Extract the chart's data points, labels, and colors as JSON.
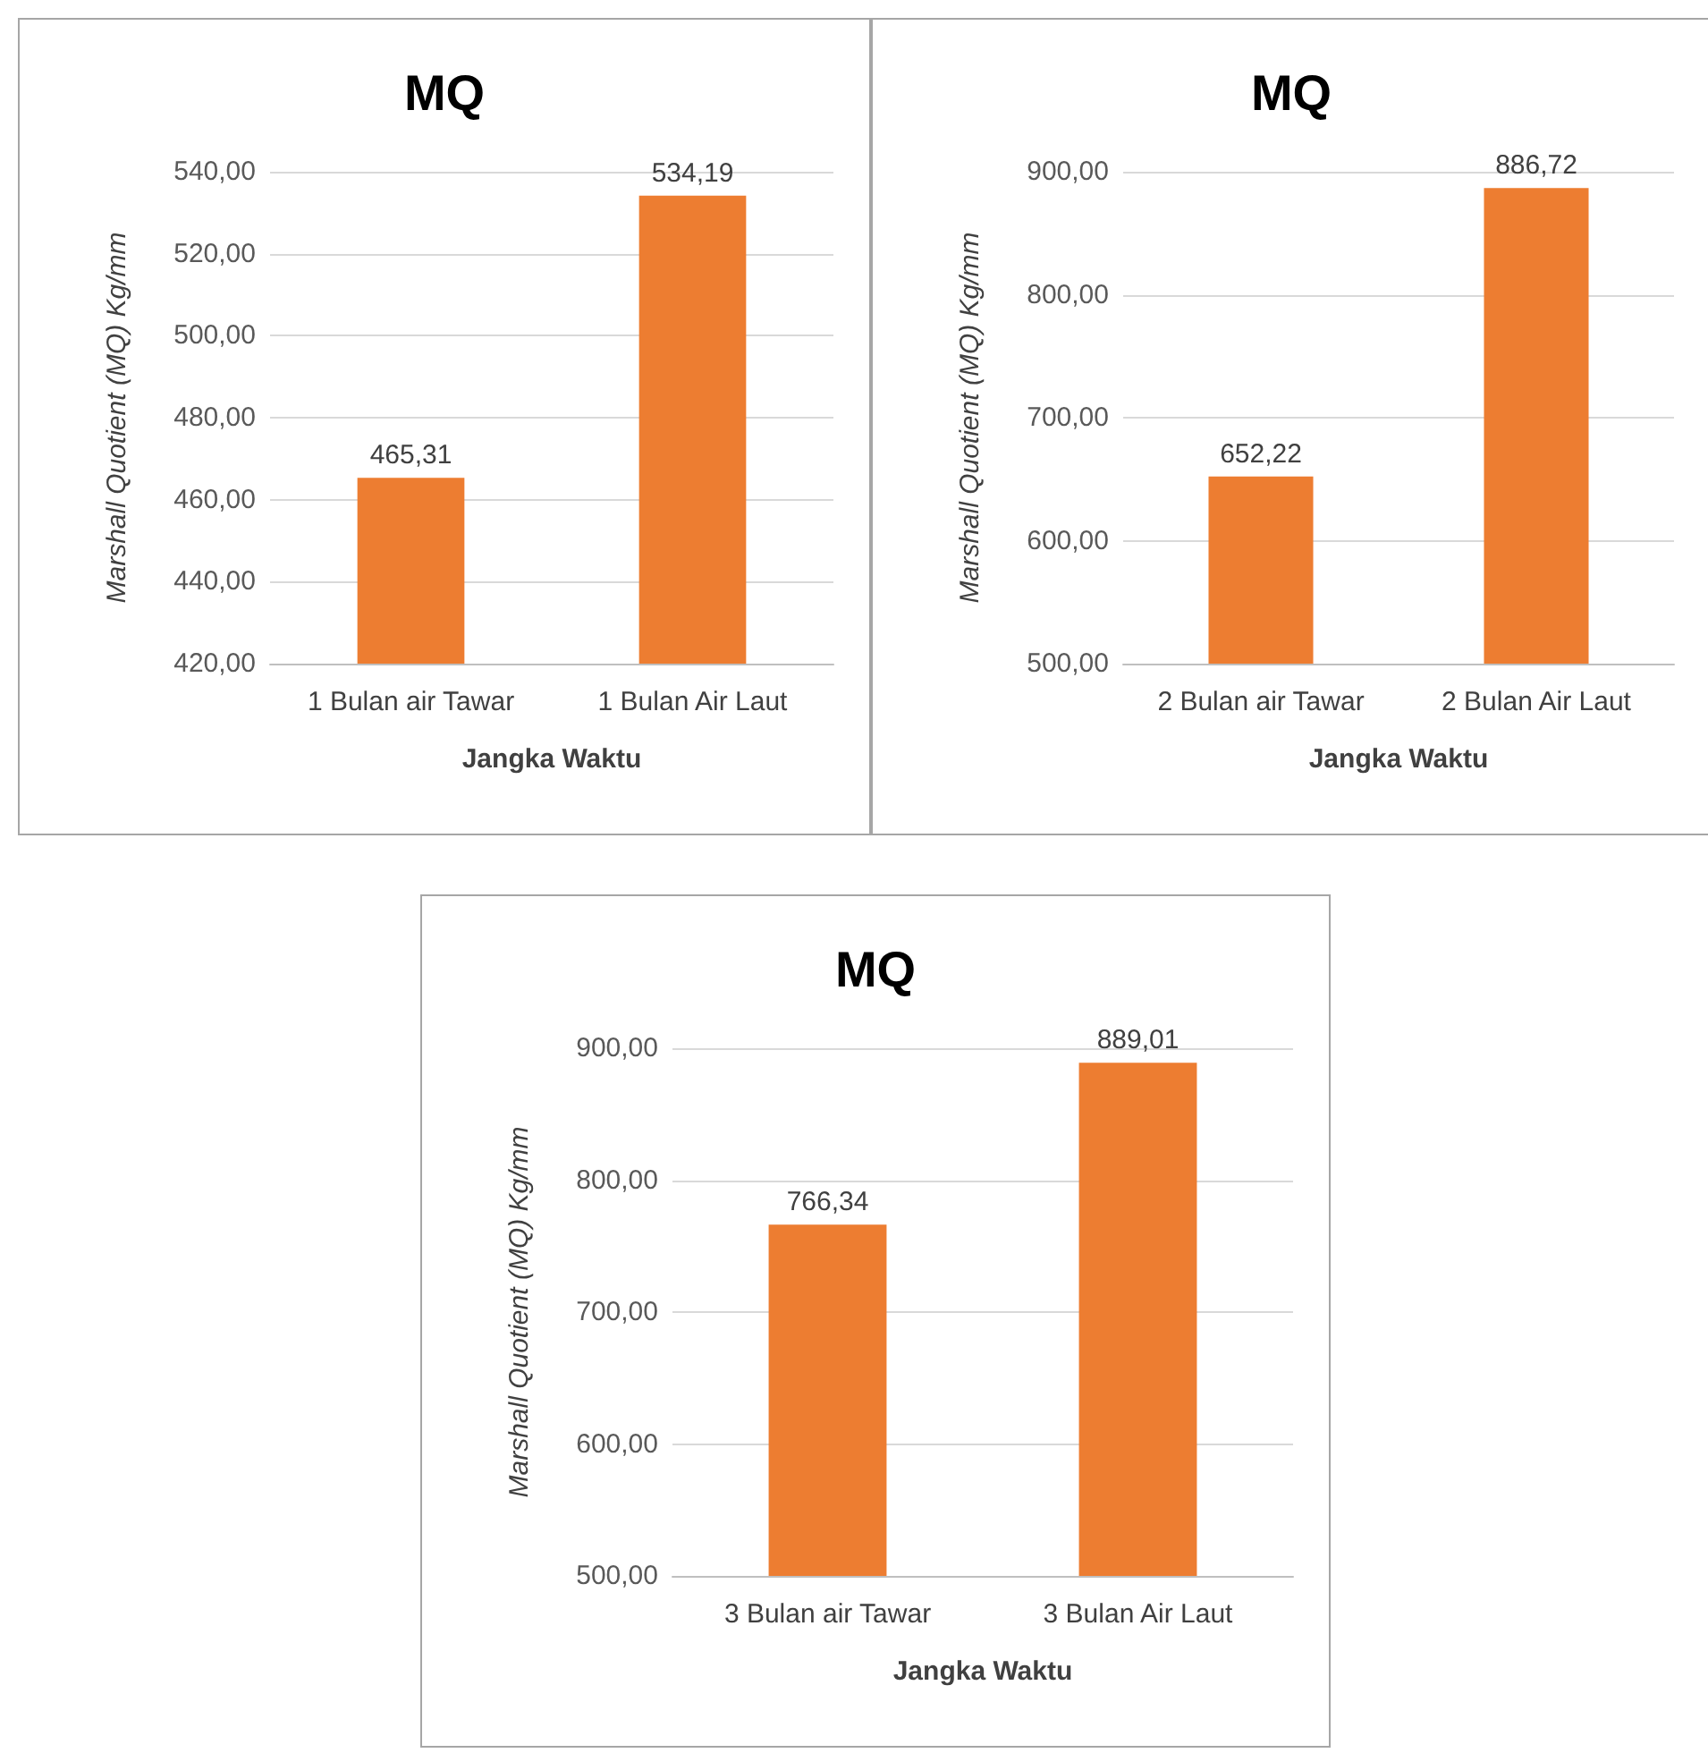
{
  "chart_data": [
    {
      "type": "bar",
      "title": "MQ",
      "xlabel": "Jangka Waktu",
      "ylabel": "Marshall Quotient (MQ) Kg/mm",
      "categories": [
        "1 Bulan air Tawar",
        "1 Bulan Air Laut"
      ],
      "values": [
        465.31,
        534.19
      ],
      "value_labels": [
        "465,31",
        "534,19"
      ],
      "color": "#ed7d31",
      "ylim": [
        420,
        540
      ],
      "yticks": [
        {
          "value": 420,
          "label": "420,00"
        },
        {
          "value": 440,
          "label": "440,00"
        },
        {
          "value": 460,
          "label": "460,00"
        },
        {
          "value": 480,
          "label": "480,00"
        },
        {
          "value": 500,
          "label": "500,00"
        },
        {
          "value": 520,
          "label": "520,00"
        },
        {
          "value": 540,
          "label": "540,00"
        }
      ],
      "grid": "y"
    },
    {
      "type": "bar",
      "title": "MQ",
      "xlabel": "Jangka Waktu",
      "ylabel": "Marshall Quotient (MQ) Kg/mm",
      "categories": [
        "2 Bulan air Tawar",
        "2 Bulan Air Laut"
      ],
      "values": [
        652.22,
        886.72
      ],
      "value_labels": [
        "652,22",
        "886,72"
      ],
      "color": "#ed7d31",
      "ylim": [
        500,
        900
      ],
      "yticks": [
        {
          "value": 500,
          "label": "500,00"
        },
        {
          "value": 600,
          "label": "600,00"
        },
        {
          "value": 700,
          "label": "700,00"
        },
        {
          "value": 800,
          "label": "800,00"
        },
        {
          "value": 900,
          "label": "900,00"
        }
      ],
      "grid": "y"
    },
    {
      "type": "bar",
      "title": "MQ",
      "xlabel": "Jangka Waktu",
      "ylabel": "Marshall Quotient (MQ) Kg/mm",
      "categories": [
        "3 Bulan air Tawar",
        "3 Bulan Air Laut"
      ],
      "values": [
        766.34,
        889.01
      ],
      "value_labels": [
        "766,34",
        "889,01"
      ],
      "color": "#ed7d31",
      "ylim": [
        500,
        900
      ],
      "yticks": [
        {
          "value": 500,
          "label": "500,00"
        },
        {
          "value": 600,
          "label": "600,00"
        },
        {
          "value": 700,
          "label": "700,00"
        },
        {
          "value": 800,
          "label": "800,00"
        },
        {
          "value": 900,
          "label": "900,00"
        }
      ],
      "grid": "y"
    }
  ]
}
